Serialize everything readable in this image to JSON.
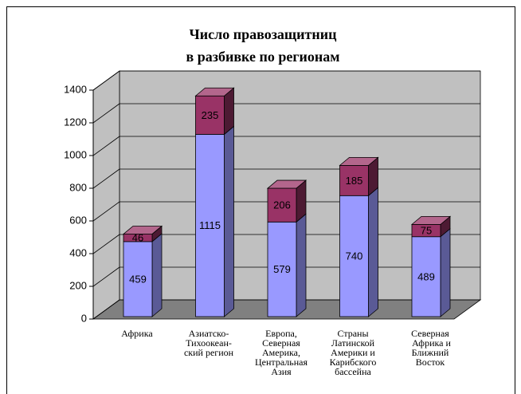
{
  "chart_data": {
    "type": "bar",
    "stacked": true,
    "title": [
      "Число правозащитниц",
      "в разбивке по регионам"
    ],
    "categories": [
      [
        "Африка"
      ],
      [
        "Азиатско-",
        "Тихоокеан-",
        "ский регион"
      ],
      [
        "Европа,",
        "Северная",
        "Америка,",
        "Центральная",
        "Азия"
      ],
      [
        "Страны",
        "Латинской",
        "Америки и",
        "Карибского",
        "бассейна"
      ],
      [
        "Северная",
        " Африка и",
        "Ближний",
        "Восток"
      ]
    ],
    "series": [
      {
        "color": "#9999ff",
        "side": "#5a5a96",
        "values": [
          459,
          1115,
          579,
          740,
          489
        ]
      },
      {
        "color": "#993366",
        "side": "#4d1a33",
        "values": [
          46,
          235,
          206,
          185,
          75
        ]
      }
    ],
    "ylim": [
      0,
      1400
    ],
    "yticks": [
      0,
      200,
      400,
      600,
      800,
      1000,
      1200,
      1400
    ],
    "grid": true
  }
}
